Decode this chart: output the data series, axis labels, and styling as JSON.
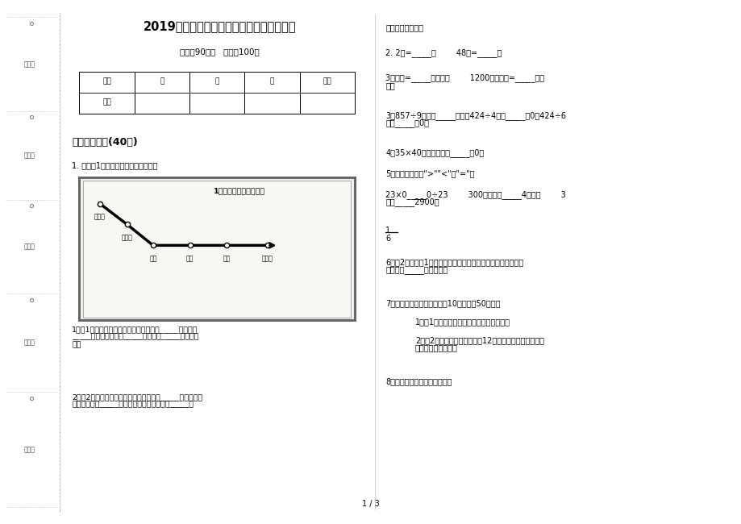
{
  "bg_color": "#ffffff",
  "page_width": 9.2,
  "page_height": 6.5,
  "title": "2019年专题三年级下学期数学期末模拟试卷",
  "subtitle": "时间：90分钟   满分：100分",
  "sidebar_labels": [
    "考号：",
    "考场：",
    "姓名：",
    "班级：",
    "学校："
  ],
  "table_headers": [
    "题号",
    "一",
    "二",
    "三",
    "总分"
  ],
  "table_row0": "得分",
  "section1_title": "一、基础练习(40分)",
  "q1_title": "1. 下面是1路公共汽车行车的路线图。",
  "bus_map_title": "1路公共汽车行车路线图",
  "bus_stations": [
    "火车站",
    "站前街",
    "邮局",
    "商店",
    "医院",
    "图书馆"
  ],
  "q1_sub1_lines": [
    "1．（1）从游泳馆到火车站的路线是：向_____方向行驶",
    "_____站到邮局，再向_____方向行驶_____站到火车",
    "站。"
  ],
  "q1_sub2_lines": [
    "2．（2）从游泳馆到动物园的路线是：向_____方向行驶到",
    "少年宫，再向_____方向行驶到电影院，再向_____方"
  ],
  "right_top_text": "向行驶到动物园。",
  "q2": "2. 2年=_____月        48时=_____日",
  "q3a_lines": [
    "3平方米=_____平方分米        1200平方厘米=_____平方",
    "分米"
  ],
  "q3b_lines": [
    "3．857÷9的商是_____位数，424÷4的商_____有0，424÷6",
    "的商_____有0。"
  ],
  "q4": "4．35×40的积的末尾有_____个0。",
  "q5_title": "5．在横线上填上\">\"\"<\"或\"=\"。",
  "q5_lines": [
    "23×0_____0÷23        300平方分米_____4平方米        3",
    "千克_____2900克"
  ],
  "q6_lines": [
    "6．用2个边长是1分米的正方形拼成一个长方形，拼成的长方形",
    "的面积是_____平方分米。"
  ],
  "q7": "7．有一块小麦实验田，长为10米、宽为50分米。",
  "q7_sub1": "1．（1）这块实验田的面积是多少平方米？",
  "q7_sub2_lines": [
    "2．（2）如果每平方米收小麦12千克，这块小麦实验田一",
    "共收小麦多少千克？"
  ],
  "q8": "8．下面图形中阴影部分不表示",
  "page_num": "1 / 3"
}
